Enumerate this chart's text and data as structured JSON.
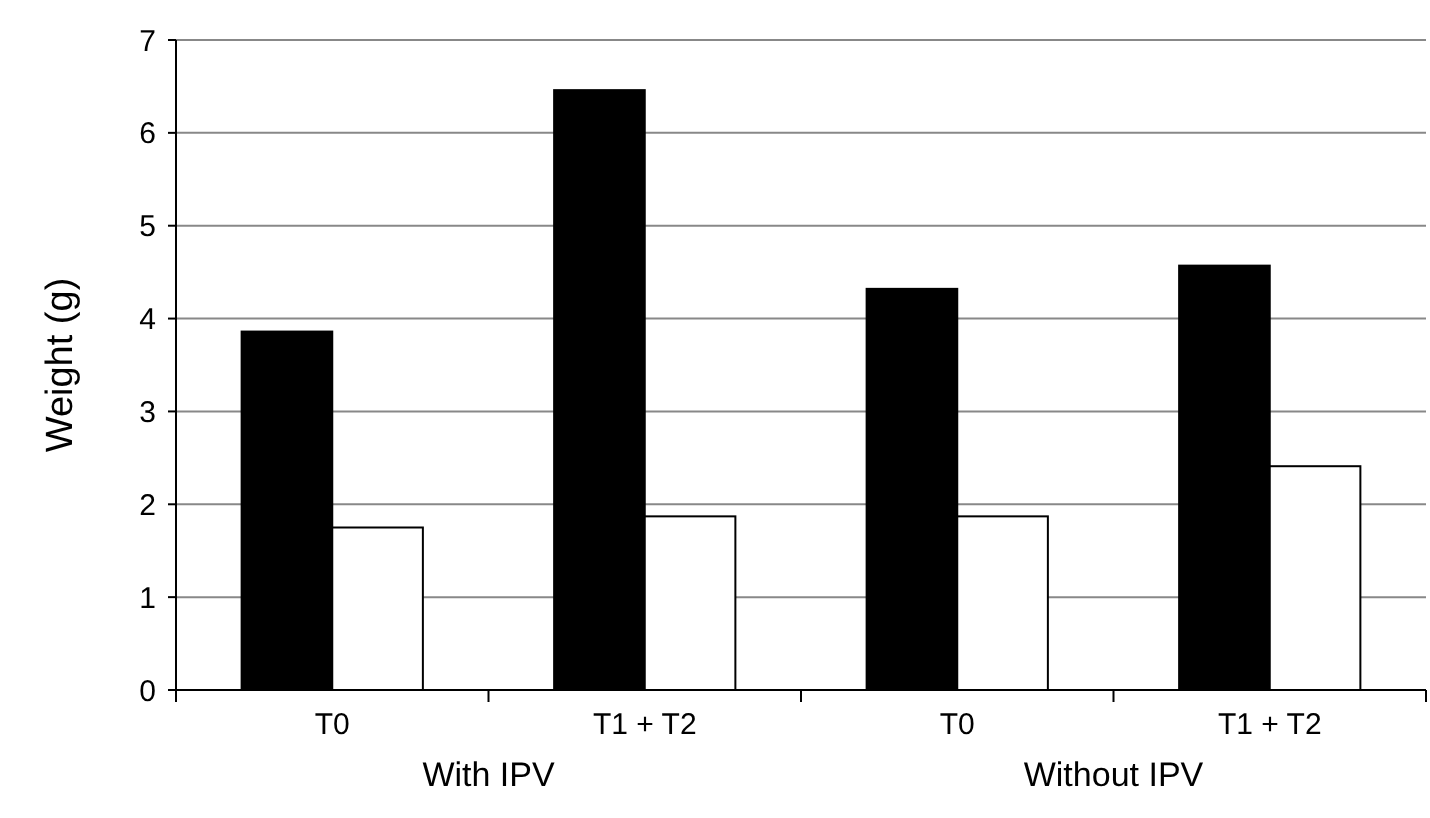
{
  "chart_data": {
    "type": "bar",
    "ylabel": "Weight (g)",
    "categories": [
      "T0",
      "T1 + T2",
      "T0",
      "T1 + T2"
    ],
    "series": [
      {
        "color": "#000000",
        "values": [
          3.86,
          6.46,
          4.32,
          4.57
        ]
      },
      {
        "color": "#ffffff",
        "values": [
          1.75,
          1.87,
          1.87,
          2.41
        ]
      }
    ],
    "annotations": [
      "With IPV",
      "Without IPV"
    ],
    "ylim": [
      0,
      7
    ],
    "yticks": [
      0,
      1,
      2,
      3,
      4,
      5,
      6,
      7
    ],
    "grid": "y"
  }
}
